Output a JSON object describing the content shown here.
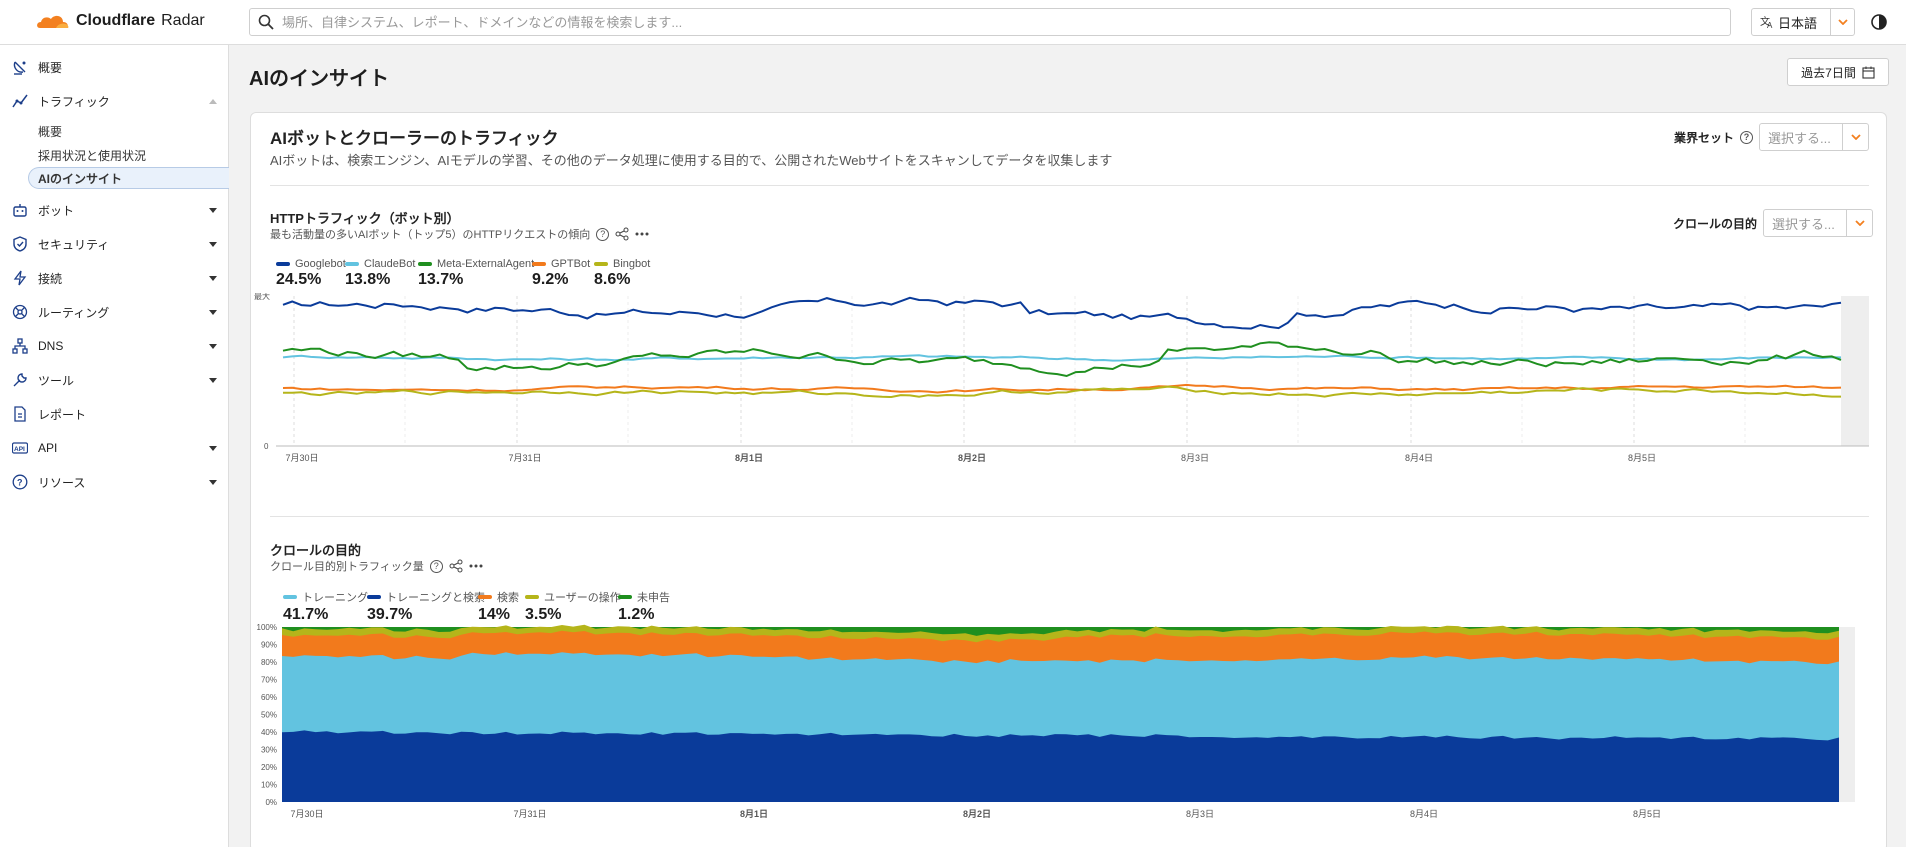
{
  "header": {
    "logo_brand": "Cloudflare",
    "logo_product": "Radar",
    "search_placeholder": "場所、自律システム、レポート、ドメインなどの情報を検索します...",
    "language": "日本語"
  },
  "sidebar": {
    "items": [
      {
        "label": "概要",
        "icon": "satellite-dish-icon"
      },
      {
        "label": "トラフィック",
        "icon": "traffic-graph-icon"
      },
      {
        "label": "ボット",
        "icon": "robot-icon"
      },
      {
        "label": "セキュリティ",
        "icon": "shield-icon"
      },
      {
        "label": "接続",
        "icon": "lightning-icon"
      },
      {
        "label": "ルーティング",
        "icon": "routing-icon"
      },
      {
        "label": "DNS",
        "icon": "dns-tree-icon"
      },
      {
        "label": "ツール",
        "icon": "wrench-icon"
      },
      {
        "label": "レポート",
        "icon": "document-icon"
      },
      {
        "label": "API",
        "icon": "api-icon"
      },
      {
        "label": "リソース",
        "icon": "help-circle-icon"
      }
    ],
    "traffic_sub": [
      "概要",
      "採用状況と使用状況",
      "AIのインサイト"
    ]
  },
  "page": {
    "title": "AIのインサイト",
    "date_range": "過去7日間"
  },
  "card": {
    "title": "AIボットとクローラーのトラフィック",
    "description": "AIボットは、検索エンジン、AIモデルの学習、その他のデータ処理に使用する目的で、公開されたWebサイトをスキャンしてデータを収集します",
    "industry_filter_label": "業界セット",
    "select_placeholder": "選択する...",
    "crawl_filter_label": "クロールの目的"
  },
  "http_section": {
    "title": "HTTPトラフィック（ボット別）",
    "subtitle": "最も活動量の多いAIボット（トップ5）のHTTPリクエストの傾向"
  },
  "crawl_section": {
    "title": "クロールの目的",
    "subtitle": "クロール目的別トラフィック量"
  },
  "chart_data": [
    {
      "type": "line",
      "yticks": [
        "最大",
        "0"
      ],
      "xticks": [
        "7月30日",
        "7月31日",
        "8月1日",
        "8月2日",
        "8月3日",
        "8月4日",
        "8月5日"
      ],
      "bold_xticks": [
        "8月1日",
        "8月2日"
      ],
      "series": [
        {
          "name": "Googlebot",
          "share": "24.5%",
          "color": "#0a3b9a",
          "level": 0.72,
          "noise": 0.04
        },
        {
          "name": "ClaudeBot",
          "share": "13.8%",
          "color": "#62c3e0",
          "level": 0.46,
          "noise": 0.012
        },
        {
          "name": "Meta-ExternalAgent",
          "share": "13.7%",
          "color": "#1f8f1f",
          "level": 0.45,
          "noise": 0.04
        },
        {
          "name": "GPTBot",
          "share": "9.2%",
          "color": "#f27a1c",
          "level": 0.3,
          "noise": 0.012
        },
        {
          "name": "Bingbot",
          "share": "8.6%",
          "color": "#b5b51a",
          "level": 0.28,
          "noise": 0.018
        }
      ]
    },
    {
      "type": "area",
      "yticks": [
        "100%",
        "90%",
        "80%",
        "70%",
        "60%",
        "50%",
        "40%",
        "30%",
        "20%",
        "10%",
        "0%"
      ],
      "xticks": [
        "7月30日",
        "7月31日",
        "8月1日",
        "8月2日",
        "8月3日",
        "8月4日",
        "8月5日"
      ],
      "bold_xticks": [
        "8月1日",
        "8月2日"
      ],
      "series": [
        {
          "name": "トレーニング",
          "share": "41.7%",
          "color": "#62c3e0"
        },
        {
          "name": "トレーニングと検索",
          "share": "39.7%",
          "color": "#0a3b9a"
        },
        {
          "name": "検索",
          "share": "14%",
          "color": "#f27a1c"
        },
        {
          "name": "ユーザーの操作",
          "share": "3.5%",
          "color": "#b5b51a"
        },
        {
          "name": "未申告",
          "share": "1.2%",
          "color": "#1f8f1f"
        }
      ]
    }
  ]
}
